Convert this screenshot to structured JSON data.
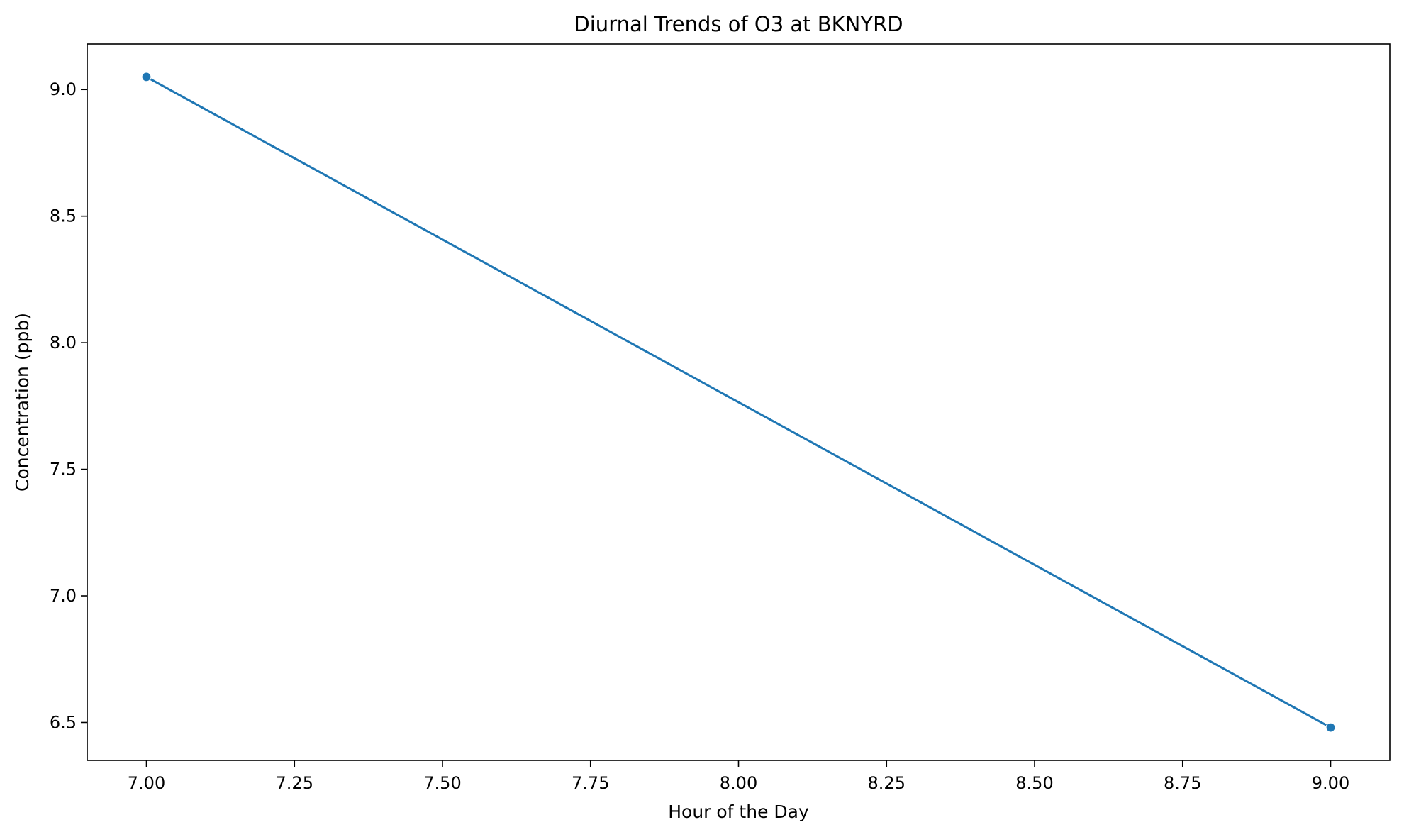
{
  "chart_data": {
    "type": "line",
    "title": "Diurnal Trends of O3 at BKNYRD",
    "xlabel": "Hour of the Day",
    "ylabel": "Concentration (ppb)",
    "xlim": [
      6.9,
      9.1
    ],
    "ylim": [
      6.35,
      9.18
    ],
    "x_ticks": [
      7.0,
      7.25,
      7.5,
      7.75,
      8.0,
      8.25,
      8.5,
      8.75,
      9.0
    ],
    "x_tick_labels": [
      "7.00",
      "7.25",
      "7.50",
      "7.75",
      "8.00",
      "8.25",
      "8.50",
      "8.75",
      "9.00"
    ],
    "y_ticks": [
      6.5,
      7.0,
      7.5,
      8.0,
      8.5,
      9.0
    ],
    "y_tick_labels": [
      "6.5",
      "7.0",
      "7.5",
      "8.0",
      "8.5",
      "9.0"
    ],
    "grid": false,
    "series": [
      {
        "color": "#1f77b4",
        "x": [
          7,
          9
        ],
        "y": [
          9.05,
          6.48
        ]
      }
    ]
  }
}
